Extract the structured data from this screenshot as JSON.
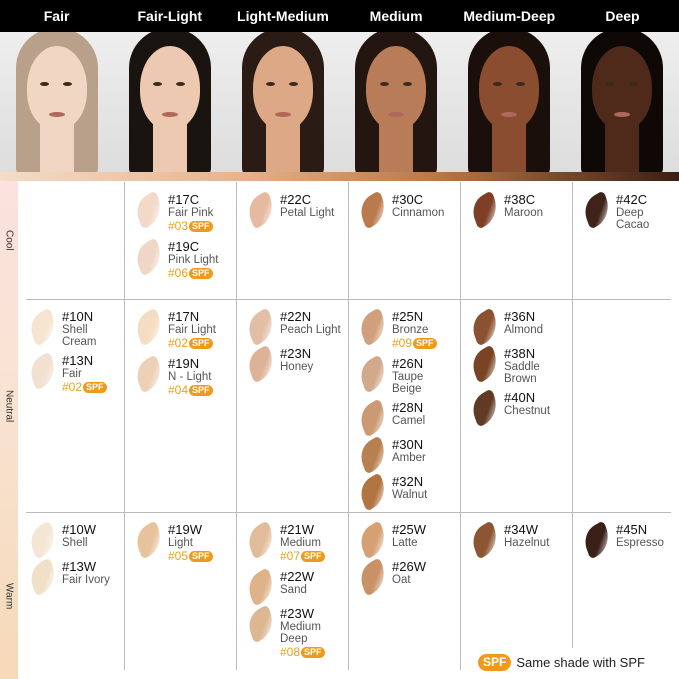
{
  "header": {
    "columns": [
      "Fair",
      "Fair-Light",
      "Light-Medium",
      "Medium",
      "Medium-Deep",
      "Deep"
    ]
  },
  "faces": [
    {
      "skin": "#f1d6c4",
      "hair": "#b9a08a"
    },
    {
      "skin": "#ecc9b0",
      "hair": "#1a1410"
    },
    {
      "skin": "#dca886",
      "hair": "#2a1c14"
    },
    {
      "skin": "#b97c58",
      "hair": "#231610"
    },
    {
      "skin": "#8a4d30",
      "hair": "#1a0f0a"
    },
    {
      "skin": "#4f2a1a",
      "hair": "#0e0806"
    }
  ],
  "spf_badge": "SPF",
  "legend": {
    "badge": "SPF",
    "text": "Same shade with SPF"
  },
  "rows": [
    {
      "label": "Cool",
      "cells": [
        [],
        [
          {
            "code": "#17C",
            "name": "Fair Pink",
            "spf": "#03",
            "color": "#f3d9c8"
          },
          {
            "code": "#19C",
            "name": "Pink Light",
            "spf": "#06",
            "color": "#f0d6c6"
          }
        ],
        [
          {
            "code": "#22C",
            "name": "Petal Light",
            "color": "#e6b9a0"
          }
        ],
        [
          {
            "code": "#30C",
            "name": "Cinnamon",
            "color": "#b97a4c"
          }
        ],
        [
          {
            "code": "#38C",
            "name": "Maroon",
            "color": "#7e3f26"
          }
        ],
        [
          {
            "code": "#42C",
            "name": "Deep Cacao",
            "color": "#3f2218"
          }
        ]
      ]
    },
    {
      "label": "Neutral",
      "cells": [
        [
          {
            "code": "#10N",
            "name": "Shell Cream",
            "color": "#f5e4d0"
          },
          {
            "code": "#13N",
            "name": "Fair",
            "spf": "#02",
            "color": "#f2e0d0"
          }
        ],
        [
          {
            "code": "#17N",
            "name": "Fair Light",
            "spf": "#02",
            "color": "#f4ddc2"
          },
          {
            "code": "#19N",
            "name": "N - Light",
            "spf": "#04",
            "color": "#ecd1b6"
          }
        ],
        [
          {
            "code": "#22N",
            "name": "Peach Light",
            "color": "#e3bea6"
          },
          {
            "code": "#23N",
            "name": "Honey",
            "color": "#dcb396"
          }
        ],
        [
          {
            "code": "#25N",
            "name": "Bronze",
            "spf": "#09",
            "color": "#d0a07c"
          },
          {
            "code": "#26N",
            "name": "Taupe Beige",
            "color": "#d3a98c"
          },
          {
            "code": "#28N",
            "name": "Camel",
            "color": "#cc9a72"
          },
          {
            "code": "#30N",
            "name": "Amber",
            "color": "#b8804f"
          },
          {
            "code": "#32N",
            "name": "Walnut",
            "color": "#b27541"
          }
        ],
        [
          {
            "code": "#36N",
            "name": "Almond",
            "color": "#8a5230"
          },
          {
            "code": "#38N",
            "name": "Saddle Brown",
            "color": "#7a4424"
          },
          {
            "code": "#40N",
            "name": "Chestnut",
            "color": "#603a24"
          }
        ],
        []
      ]
    },
    {
      "label": "Warm",
      "cells": [
        [
          {
            "code": "#10W",
            "name": "Shell",
            "color": "#f4e6d4"
          },
          {
            "code": "#13W",
            "name": "Fair Ivory",
            "color": "#f1e0c8"
          }
        ],
        [
          {
            "code": "#19W",
            "name": "Light",
            "spf": "#05",
            "color": "#e8c29c"
          }
        ],
        [
          {
            "code": "#21W",
            "name": "Medium",
            "spf": "#07",
            "color": "#e2bc98"
          },
          {
            "code": "#22W",
            "name": "Sand",
            "color": "#deb38a"
          },
          {
            "code": "#23W",
            "name": "Medium Deep",
            "spf": "#08",
            "color": "#dcb792"
          }
        ],
        [
          {
            "code": "#25W",
            "name": "Latte",
            "color": "#d5a174"
          },
          {
            "code": "#26W",
            "name": "Oat",
            "color": "#c99266"
          }
        ],
        [
          {
            "code": "#34W",
            "name": "Hazelnut",
            "color": "#8c5632"
          }
        ],
        [
          {
            "code": "#45N",
            "name": "Espresso",
            "color": "#3a2018"
          }
        ]
      ]
    }
  ]
}
